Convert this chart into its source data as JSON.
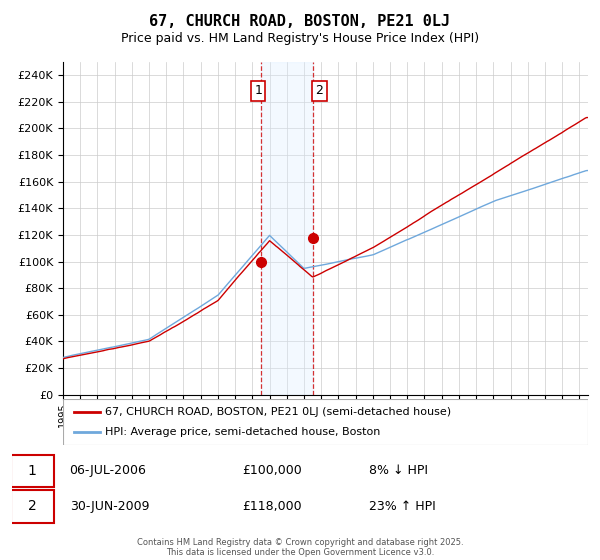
{
  "title": "67, CHURCH ROAD, BOSTON, PE21 0LJ",
  "subtitle": "Price paid vs. HM Land Registry's House Price Index (HPI)",
  "legend_line1": "67, CHURCH ROAD, BOSTON, PE21 0LJ (semi-detached house)",
  "legend_line2": "HPI: Average price, semi-detached house, Boston",
  "footer": "Contains HM Land Registry data © Crown copyright and database right 2025.\nThis data is licensed under the Open Government Licence v3.0.",
  "transaction1_date": "06-JUL-2006",
  "transaction1_price": "£100,000",
  "transaction1_hpi": "8% ↓ HPI",
  "transaction2_date": "30-JUN-2009",
  "transaction2_price": "£118,000",
  "transaction2_hpi": "23% ↑ HPI",
  "sale1_year": 2006.5,
  "sale1_value": 100000,
  "sale2_year": 2009.5,
  "sale2_value": 118000,
  "hpi_color": "#6fa8dc",
  "price_color": "#cc0000",
  "shade_color": "#ddeeff",
  "background_color": "#ffffff",
  "grid_color": "#cccccc",
  "hpi_keypoints": [
    [
      1995,
      28000
    ],
    [
      2000,
      42000
    ],
    [
      2004,
      75000
    ],
    [
      2007,
      120000
    ],
    [
      2009,
      95000
    ],
    [
      2013,
      105000
    ],
    [
      2020,
      145000
    ],
    [
      2025.4,
      168000
    ]
  ],
  "price_keypoints": [
    [
      1995,
      27000
    ],
    [
      2000,
      40000
    ],
    [
      2004,
      70000
    ],
    [
      2007,
      115000
    ],
    [
      2009.5,
      88000
    ],
    [
      2013,
      110000
    ],
    [
      2020,
      165000
    ],
    [
      2025.4,
      207000
    ]
  ],
  "ylim": [
    0,
    250000
  ],
  "xlim_start": 1995,
  "xlim_end": 2025.5
}
